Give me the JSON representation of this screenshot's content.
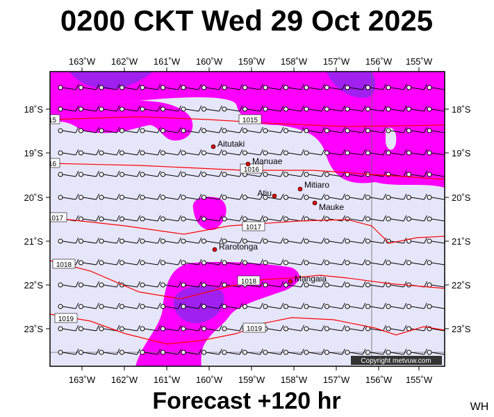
{
  "title": "0200 CKT Wed 29 Oct 2025",
  "longitudes": [
    "163˚W",
    "162˚W",
    "161˚W",
    "160˚W",
    "159˚W",
    "158˚W",
    "157˚W",
    "156˚W",
    "155˚W"
  ],
  "latitudes": [
    "18˚S",
    "19˚S",
    "20˚S",
    "21˚S",
    "22˚S",
    "23˚S"
  ],
  "islands": [
    "Aitutaki",
    "Manuae",
    "Atiu",
    "Mitiaro",
    "Mauke",
    "Rarotonga",
    "Mangaia"
  ],
  "isobars": [
    "1015",
    "1016",
    "1017",
    "1018",
    "1019"
  ],
  "copyright": "Copyright metvuw.com",
  "footer": "Forecast +120 hr",
  "corner": "WH"
}
